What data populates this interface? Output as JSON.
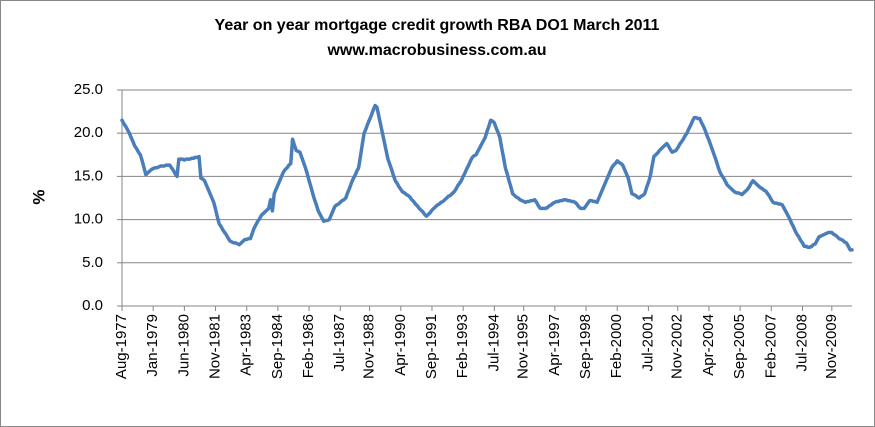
{
  "chart_data": {
    "type": "line",
    "title": "Year on year mortgage credit growth RBA DO1 March 2011",
    "subtitle": "www.macrobusiness.com.au",
    "y_label": "%",
    "color": "#4a7ebb",
    "grid": true,
    "ylim": [
      0,
      25
    ],
    "yticks": [
      {
        "value": 0,
        "label": "0.0"
      },
      {
        "value": 5,
        "label": "5.0"
      },
      {
        "value": 10,
        "label": "10.0"
      },
      {
        "value": 15,
        "label": "15.0"
      },
      {
        "value": 20,
        "label": "20.0"
      },
      {
        "value": 25,
        "label": "25.0"
      }
    ],
    "categories": [
      "Aug-1977",
      null,
      null,
      null,
      null,
      null,
      null,
      null,
      null,
      null,
      null,
      null,
      null,
      null,
      null,
      null,
      null,
      "Jan-1979",
      null,
      null,
      null,
      null,
      null,
      null,
      null,
      null,
      null,
      null,
      null,
      null,
      null,
      null,
      null,
      null,
      "Jun-1980",
      null,
      null,
      null,
      null,
      null,
      null,
      null,
      null,
      null,
      null,
      null,
      null,
      null,
      null,
      null,
      null,
      "Nov-1981",
      null,
      null,
      null,
      null,
      null,
      null,
      null,
      null,
      null,
      null,
      null,
      null,
      null,
      null,
      null,
      null,
      "Apr-1983",
      null,
      null,
      null,
      null,
      null,
      null,
      null,
      null,
      null,
      null,
      null,
      null,
      null,
      null,
      null,
      null,
      "Sep-1984",
      null,
      null,
      null,
      null,
      null,
      null,
      null,
      null,
      null,
      null,
      null,
      null,
      null,
      null,
      null,
      null,
      "Feb-1986",
      null,
      null,
      null,
      null,
      null,
      null,
      null,
      null,
      null,
      null,
      null,
      null,
      null,
      null,
      null,
      null,
      "Jul-1987",
      null,
      null,
      null,
      null,
      null,
      null,
      null,
      null,
      null,
      null,
      null,
      null,
      null,
      null,
      null,
      "Nov-1988",
      null,
      null,
      null,
      null,
      null,
      null,
      null,
      null,
      null,
      null,
      null,
      null,
      null,
      null,
      null,
      null,
      "Apr-1990",
      null,
      null,
      null,
      null,
      null,
      null,
      null,
      null,
      null,
      null,
      null,
      null,
      null,
      null,
      null,
      null,
      "Sep-1991",
      null,
      null,
      null,
      null,
      null,
      null,
      null,
      null,
      null,
      null,
      null,
      null,
      null,
      null,
      null,
      null,
      "Feb-1993",
      null,
      null,
      null,
      null,
      null,
      null,
      null,
      null,
      null,
      null,
      null,
      null,
      null,
      null,
      null,
      null,
      "Jul-1994",
      null,
      null,
      null,
      null,
      null,
      null,
      null,
      null,
      null,
      null,
      null,
      null,
      null,
      null,
      null,
      "Nov-1995",
      null,
      null,
      null,
      null,
      null,
      null,
      null,
      null,
      null,
      null,
      null,
      null,
      null,
      null,
      null,
      null,
      "Apr-1997",
      null,
      null,
      null,
      null,
      null,
      null,
      null,
      null,
      null,
      null,
      null,
      null,
      null,
      null,
      null,
      null,
      "Sep-1998",
      null,
      null,
      null,
      null,
      null,
      null,
      null,
      null,
      null,
      null,
      null,
      null,
      null,
      null,
      null,
      null,
      "Feb-2000",
      null,
      null,
      null,
      null,
      null,
      null,
      null,
      null,
      null,
      null,
      null,
      null,
      null,
      null,
      null,
      null,
      "Jul-2001",
      null,
      null,
      null,
      null,
      null,
      null,
      null,
      null,
      null,
      null,
      null,
      null,
      null,
      null,
      null,
      "Nov-2002",
      null,
      null,
      null,
      null,
      null,
      null,
      null,
      null,
      null,
      null,
      null,
      null,
      null,
      null,
      null,
      null,
      "Apr-2004",
      null,
      null,
      null,
      null,
      null,
      null,
      null,
      null,
      null,
      null,
      null,
      null,
      null,
      null,
      null,
      null,
      "Sep-2005",
      null,
      null,
      null,
      null,
      null,
      null,
      null,
      null,
      null,
      null,
      null,
      null,
      null,
      null,
      null,
      null,
      "Feb-2007",
      null,
      null,
      null,
      null,
      null,
      null,
      null,
      null,
      null,
      null,
      null,
      null,
      null,
      null,
      null,
      null,
      "Jul-2008",
      null,
      null,
      null,
      null,
      null,
      null,
      null,
      null,
      null,
      null,
      null,
      null,
      null,
      null,
      null,
      "Nov-2009",
      null,
      null,
      null,
      null,
      null,
      null,
      null,
      null,
      null,
      null,
      null
    ],
    "values": [
      21.5,
      21.1,
      20.8,
      20.4,
      20.0,
      19.5,
      19.0,
      18.5,
      18.2,
      17.8,
      17.5,
      16.8,
      16.0,
      15.2,
      15.4,
      15.6,
      15.8,
      15.9,
      16.0,
      16.0,
      16.1,
      16.2,
      16.2,
      16.2,
      16.3,
      16.3,
      16.3,
      16.0,
      15.7,
      15.3,
      15.0,
      17.0,
      17.0,
      17.0,
      16.9,
      17.0,
      17.0,
      17.0,
      17.1,
      17.1,
      17.2,
      17.2,
      17.3,
      14.8,
      14.7,
      14.5,
      14.0,
      13.5,
      13.0,
      12.5,
      12.0,
      11.2,
      10.3,
      9.5,
      9.2,
      8.8,
      8.5,
      8.2,
      7.8,
      7.5,
      7.4,
      7.3,
      7.3,
      7.2,
      7.1,
      7.3,
      7.5,
      7.7,
      7.7,
      7.8,
      7.8,
      8.4,
      9.0,
      9.4,
      9.8,
      10.1,
      10.5,
      10.7,
      10.9,
      11.1,
      11.3,
      12.3,
      11.0,
      13.0,
      13.5,
      14.0,
      14.5,
      15.0,
      15.5,
      15.8,
      16.0,
      16.3,
      16.5,
      19.3,
      18.6,
      18.0,
      17.9,
      17.8,
      17.2,
      16.6,
      16.0,
      15.3,
      14.5,
      13.8,
      13.0,
      12.3,
      11.7,
      11.0,
      10.6,
      10.2,
      9.8,
      9.9,
      9.9,
      10.0,
      10.5,
      11.0,
      11.5,
      11.7,
      11.8,
      12.0,
      12.2,
      12.3,
      12.5,
      13.1,
      13.6,
      14.2,
      14.7,
      15.1,
      15.6,
      16.0,
      17.3,
      18.7,
      20.0,
      20.5,
      21.1,
      21.6,
      22.1,
      22.7,
      23.2,
      23.0,
      22.0,
      21.0,
      20.0,
      19.0,
      18.0,
      17.0,
      16.4,
      15.8,
      15.1,
      14.5,
      14.2,
      13.8,
      13.5,
      13.2,
      13.1,
      12.9,
      12.8,
      12.6,
      12.3,
      12.1,
      11.8,
      11.6,
      11.3,
      11.1,
      10.9,
      10.6,
      10.4,
      10.6,
      10.8,
      11.1,
      11.3,
      11.5,
      11.7,
      11.8,
      12.0,
      12.1,
      12.3,
      12.5,
      12.7,
      12.8,
      13.0,
      13.2,
      13.5,
      13.9,
      14.2,
      14.5,
      15.0,
      15.4,
      15.9,
      16.3,
      16.8,
      17.2,
      17.4,
      17.5,
      17.9,
      18.3,
      18.7,
      19.1,
      19.5,
      20.2,
      20.8,
      21.5,
      21.4,
      21.2,
      20.6,
      20.1,
      19.5,
      18.3,
      17.2,
      16.0,
      15.3,
      14.5,
      13.8,
      13.0,
      12.8,
      12.6,
      12.5,
      12.3,
      12.2,
      12.1,
      12.0,
      12.1,
      12.1,
      12.2,
      12.2,
      12.3,
      12.0,
      11.6,
      11.3,
      11.3,
      11.3,
      11.3,
      11.4,
      11.6,
      11.7,
      11.9,
      12.0,
      12.1,
      12.1,
      12.2,
      12.2,
      12.3,
      12.3,
      12.2,
      12.2,
      12.1,
      12.1,
      12.0,
      11.8,
      11.5,
      11.3,
      11.3,
      11.3,
      11.6,
      11.9,
      12.2,
      12.2,
      12.1,
      12.1,
      12.0,
      12.5,
      13.0,
      13.5,
      14.0,
      14.5,
      15.0,
      15.5,
      16.0,
      16.3,
      16.5,
      16.8,
      16.6,
      16.5,
      16.3,
      15.8,
      15.3,
      14.8,
      13.9,
      13.0,
      12.9,
      12.8,
      12.6,
      12.5,
      12.7,
      12.8,
      13.0,
      13.7,
      14.3,
      15.0,
      16.2,
      17.3,
      17.5,
      17.7,
      18.0,
      18.2,
      18.4,
      18.6,
      18.8,
      18.5,
      18.1,
      17.8,
      17.9,
      18.0,
      18.3,
      18.7,
      19.0,
      19.3,
      19.7,
      20.0,
      20.5,
      20.9,
      21.4,
      21.8,
      21.8,
      21.7,
      21.7,
      21.2,
      20.8,
      20.3,
      19.7,
      19.2,
      18.6,
      18.0,
      17.4,
      16.8,
      16.1,
      15.5,
      15.1,
      14.8,
      14.4,
      14.0,
      13.8,
      13.6,
      13.4,
      13.2,
      13.1,
      13.1,
      13.0,
      12.9,
      13.1,
      13.3,
      13.5,
      13.8,
      14.2,
      14.5,
      14.3,
      14.1,
      13.9,
      13.7,
      13.6,
      13.4,
      13.3,
      13.0,
      12.7,
      12.3,
      12.0,
      11.9,
      11.9,
      11.8,
      11.8,
      11.7,
      11.3,
      10.9,
      10.5,
      10.1,
      9.6,
      9.2,
      8.7,
      8.3,
      8.0,
      7.6,
      7.3,
      6.9,
      6.9,
      6.8,
      6.8,
      6.9,
      7.1,
      7.2,
      7.6,
      8.0,
      8.1,
      8.2,
      8.3,
      8.4,
      8.5,
      8.5,
      8.5,
      8.3,
      8.2,
      8.0,
      7.8,
      7.7,
      7.6,
      7.4,
      7.3,
      6.9,
      6.5,
      6.5
    ]
  }
}
